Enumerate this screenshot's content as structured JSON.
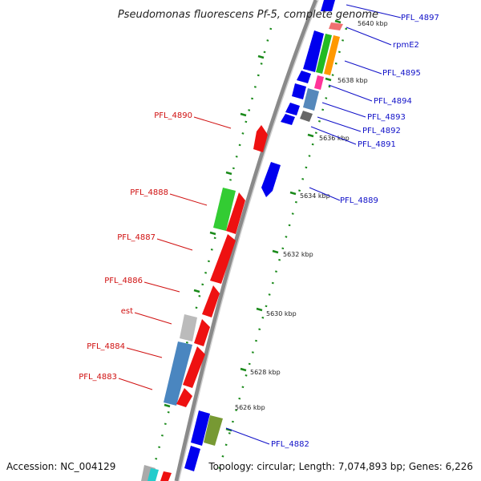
{
  "title": "Pseudomonas fluorescens Pf-5, complete genome",
  "footer": {
    "accession": "Accession: NC_004129",
    "topology": "Topology: circular; Length: 7,074,893 bp; Genes: 6,226"
  },
  "colors": {
    "backbone": "#8a8a8a",
    "tick": "#1a8a1a",
    "right_label": "#1010c8",
    "left_label": "#d01010"
  },
  "ticks": [
    "5626 kbp",
    "5628 kbp",
    "5630 kbp",
    "5632 kbp",
    "5634 kbp",
    "5636 kbp",
    "5638 kbp",
    "5640 kbp"
  ],
  "right_labels": [
    "PFL_4897",
    "rpmE2",
    "PFL_4895",
    "PFL_4894",
    "PFL_4893",
    "PFL_4892",
    "PFL_4891",
    "PFL_4889",
    "PFL_4882"
  ],
  "left_labels": [
    "PFL_4890",
    "PFL_4888",
    "PFL_4887",
    "PFL_4886",
    "est",
    "PFL_4884",
    "PFL_4883"
  ]
}
